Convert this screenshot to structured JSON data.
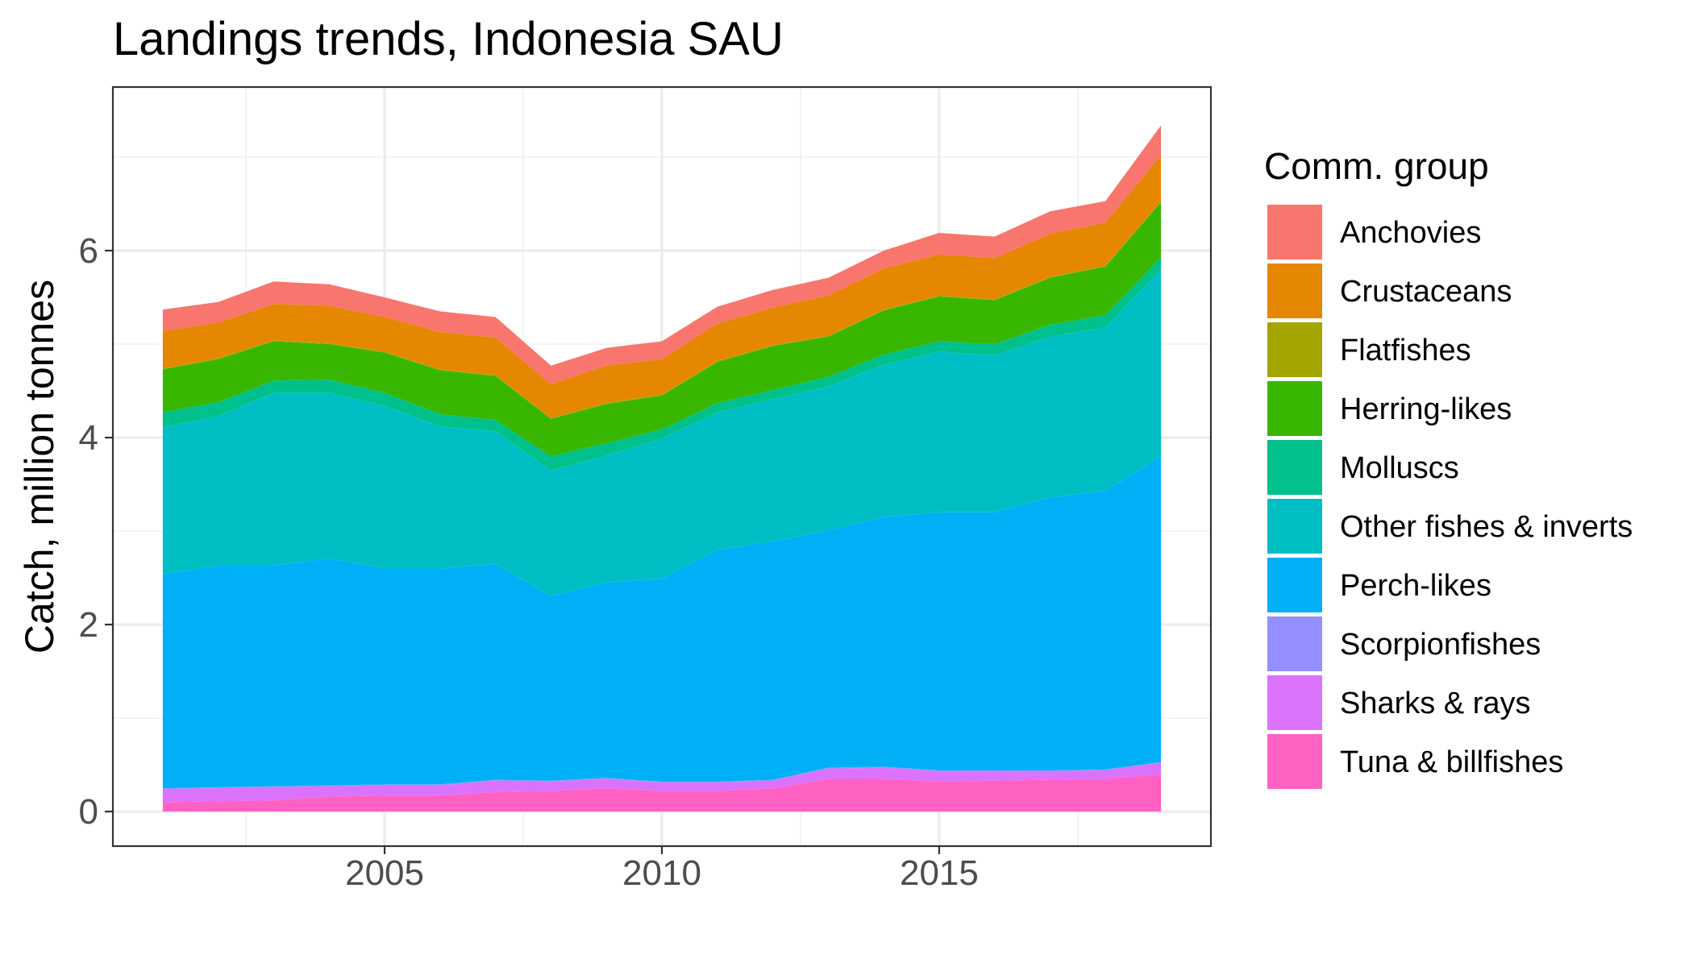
{
  "chart_data": {
    "type": "area",
    "stacked": true,
    "title": "Landings trends, Indonesia SAU",
    "xlabel": "",
    "ylabel": "Catch, million tonnes",
    "xlim": [
      2000.1,
      2019.9
    ],
    "ylim": [
      -0.37,
      7.75
    ],
    "x_ticks": [
      2005,
      2010,
      2015
    ],
    "y_ticks": [
      0,
      2,
      4,
      6
    ],
    "grid": true,
    "legend": {
      "title": "Comm. group",
      "placement": "right"
    },
    "x": [
      2001,
      2002,
      2003,
      2004,
      2005,
      2006,
      2007,
      2008,
      2009,
      2010,
      2011,
      2012,
      2013,
      2014,
      2015,
      2016,
      2017,
      2018,
      2019
    ],
    "series": [
      {
        "name": "Tuna & billfishes",
        "color": "#FF61C3",
        "values": [
          0.1,
          0.11,
          0.12,
          0.16,
          0.17,
          0.17,
          0.21,
          0.22,
          0.25,
          0.22,
          0.22,
          0.25,
          0.35,
          0.35,
          0.32,
          0.33,
          0.34,
          0.35,
          0.4
        ]
      },
      {
        "name": "Sharks & rays",
        "color": "#DB72FB",
        "values": [
          0.14,
          0.14,
          0.14,
          0.11,
          0.11,
          0.11,
          0.12,
          0.1,
          0.1,
          0.09,
          0.09,
          0.08,
          0.11,
          0.12,
          0.11,
          0.1,
          0.09,
          0.09,
          0.12
        ]
      },
      {
        "name": "Scorpionfishes",
        "color": "#9590FF",
        "values": [
          0.01,
          0.01,
          0.01,
          0.01,
          0.01,
          0.01,
          0.01,
          0.01,
          0.01,
          0.01,
          0.01,
          0.01,
          0.01,
          0.01,
          0.01,
          0.01,
          0.01,
          0.01,
          0.01
        ]
      },
      {
        "name": "Perch-likes",
        "color": "#00B0F6",
        "values": [
          2.29,
          2.37,
          2.36,
          2.43,
          2.31,
          2.31,
          2.31,
          1.98,
          2.09,
          2.17,
          2.48,
          2.55,
          2.54,
          2.67,
          2.76,
          2.76,
          2.92,
          2.98,
          3.27
        ]
      },
      {
        "name": "Other fishes & inverts",
        "color": "#00BFC4",
        "values": [
          1.57,
          1.6,
          1.85,
          1.77,
          1.74,
          1.52,
          1.42,
          1.34,
          1.36,
          1.5,
          1.47,
          1.52,
          1.54,
          1.63,
          1.72,
          1.68,
          1.72,
          1.75,
          2.0
        ]
      },
      {
        "name": "Molluscs",
        "color": "#00C08B",
        "values": [
          0.16,
          0.15,
          0.13,
          0.14,
          0.14,
          0.13,
          0.12,
          0.15,
          0.13,
          0.1,
          0.1,
          0.1,
          0.1,
          0.11,
          0.11,
          0.12,
          0.13,
          0.13,
          0.13
        ]
      },
      {
        "name": "Herring-likes",
        "color": "#39B600",
        "values": [
          0.46,
          0.46,
          0.42,
          0.38,
          0.43,
          0.47,
          0.47,
          0.4,
          0.42,
          0.36,
          0.44,
          0.47,
          0.43,
          0.47,
          0.48,
          0.47,
          0.5,
          0.52,
          0.59
        ]
      },
      {
        "name": "Flatfishes",
        "color": "#A3A500",
        "values": [
          0.01,
          0.01,
          0.01,
          0.01,
          0.01,
          0.01,
          0.01,
          0.01,
          0.01,
          0.01,
          0.01,
          0.01,
          0.01,
          0.01,
          0.01,
          0.01,
          0.01,
          0.01,
          0.01
        ]
      },
      {
        "name": "Crustaceans",
        "color": "#E58700",
        "values": [
          0.4,
          0.38,
          0.39,
          0.4,
          0.37,
          0.4,
          0.4,
          0.36,
          0.4,
          0.38,
          0.4,
          0.4,
          0.43,
          0.44,
          0.44,
          0.44,
          0.46,
          0.46,
          0.49
        ]
      },
      {
        "name": "Anchovies",
        "color": "#F8766D",
        "values": [
          0.23,
          0.22,
          0.24,
          0.23,
          0.21,
          0.22,
          0.22,
          0.2,
          0.19,
          0.19,
          0.18,
          0.19,
          0.19,
          0.19,
          0.23,
          0.23,
          0.24,
          0.23,
          0.32
        ]
      }
    ]
  },
  "legend_order": [
    "Anchovies",
    "Crustaceans",
    "Flatfishes",
    "Herring-likes",
    "Molluscs",
    "Other fishes & inverts",
    "Perch-likes",
    "Scorpionfishes",
    "Sharks & rays",
    "Tuna & billfishes"
  ]
}
